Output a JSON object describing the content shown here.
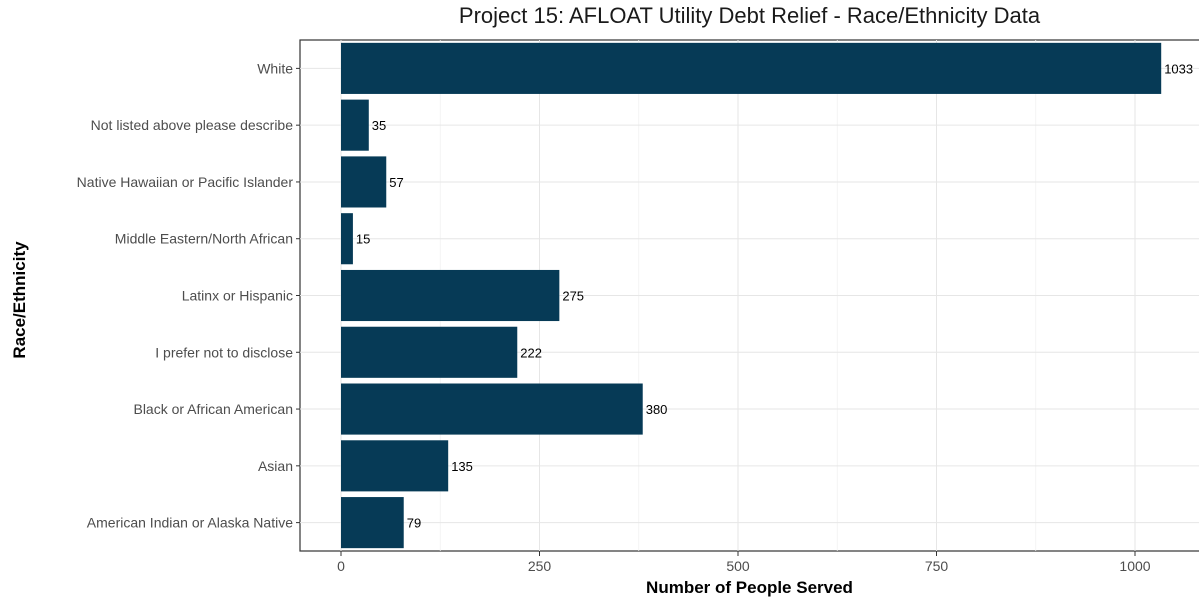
{
  "chart_data": {
    "type": "bar",
    "orientation": "horizontal",
    "title": "Project 15: AFLOAT Utility Debt Relief - Race/Ethnicity Data",
    "xlabel": "Number of People Served",
    "ylabel": "Race/Ethnicity",
    "categories": [
      "White",
      "Not listed above please describe",
      "Native Hawaiian or Pacific Islander",
      "Middle Eastern/North African",
      "Latinx or Hispanic",
      "I prefer not to disclose",
      "Black or African American",
      "Asian",
      "American Indian or Alaska Native"
    ],
    "values": [
      1033,
      35,
      57,
      15,
      275,
      222,
      380,
      135,
      79
    ],
    "data_labels": [
      "1033",
      "35",
      "57",
      "15",
      "275",
      "222",
      "380",
      "135",
      "79"
    ],
    "xticks": [
      0,
      250,
      500,
      750,
      1000
    ],
    "xtick_labels": [
      "0",
      "250",
      "500",
      "750",
      "1000"
    ],
    "xlim": [
      -52,
      1085
    ],
    "bar_color": "#063A56",
    "grid": true,
    "legend": "none"
  }
}
